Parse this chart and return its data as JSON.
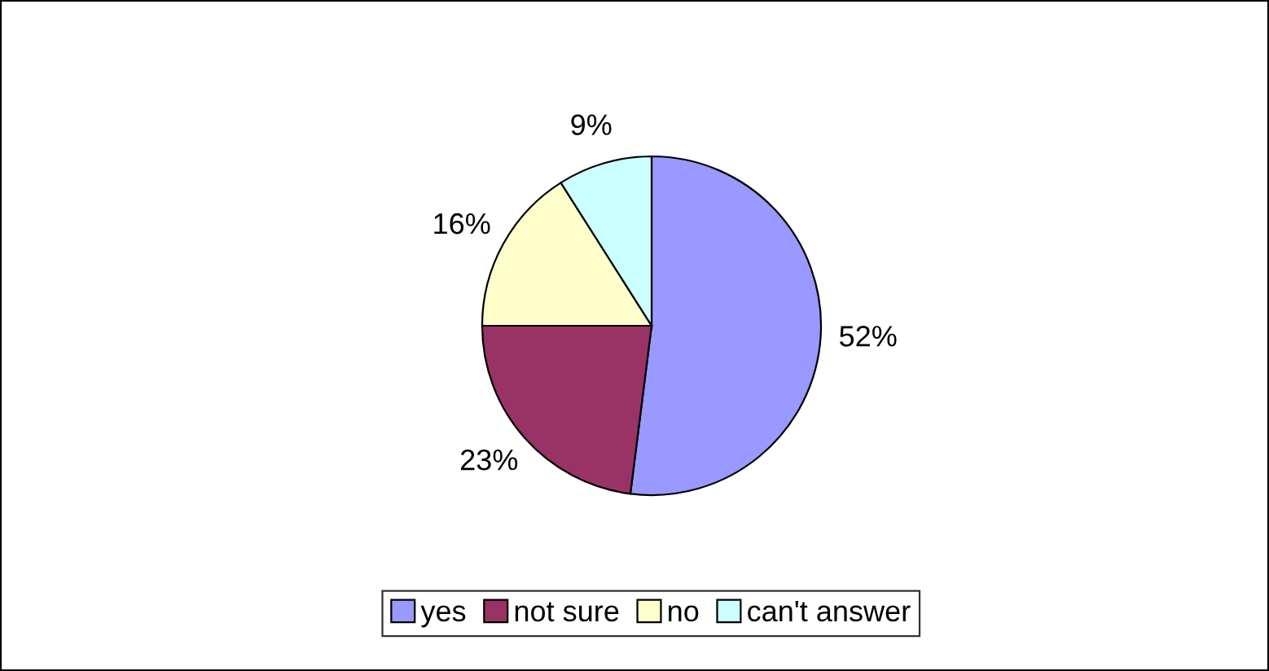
{
  "chart_data": {
    "type": "pie",
    "categories": [
      "yes",
      "not sure",
      "no",
      "can't answer"
    ],
    "values": [
      52,
      23,
      16,
      9
    ],
    "colors": [
      "#9999ff",
      "#993366",
      "#ffffcc",
      "#ccffff"
    ],
    "value_labels": [
      "52%",
      "23%",
      "16%",
      "9%"
    ],
    "legend": "bottom"
  }
}
